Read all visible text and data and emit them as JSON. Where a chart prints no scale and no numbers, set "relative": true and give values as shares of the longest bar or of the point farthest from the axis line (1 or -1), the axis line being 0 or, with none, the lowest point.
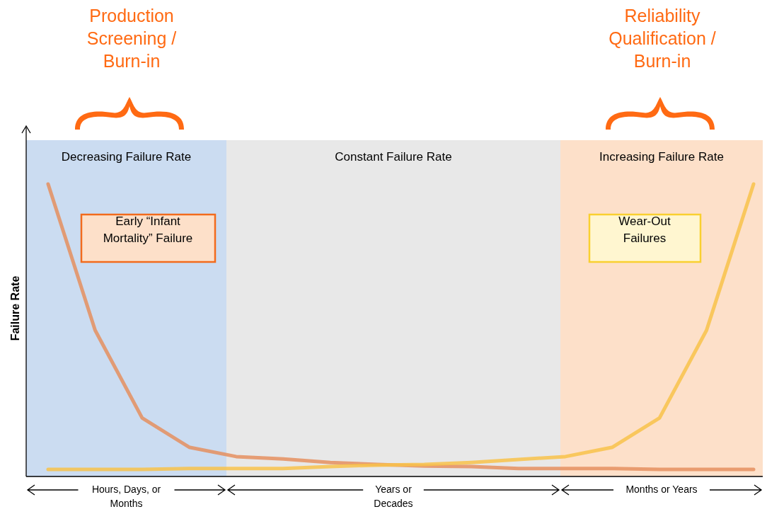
{
  "chart_data": {
    "type": "line",
    "relative": true,
    "ylabel": "Failure Rate",
    "categories": [
      null,
      null,
      null,
      null,
      null,
      null,
      null,
      null,
      null,
      null,
      null,
      null,
      null,
      null,
      null,
      null
    ],
    "series": [
      {
        "color": "#e58f5f",
        "values": [
          1,
          0.5,
          0.2,
          0.1,
          0.068,
          0.06,
          0.048,
          0.041,
          0.036,
          0.034,
          0.027,
          0.027,
          0.027,
          0.024,
          0.024,
          0.024
        ]
      },
      {
        "color": "#f8c24a",
        "values": [
          0.024,
          0.024,
          0.024,
          0.027,
          0.027,
          0.027,
          0.034,
          0.039,
          0.041,
          0.048,
          0.058,
          0.068,
          0.1,
          0.2,
          0.5,
          1
        ]
      }
    ],
    "annotations": [
      "Decreasing Failure Rate",
      "Constant Failure Rate",
      "Increasing Failure Rate",
      "Production Screening / Burn-in",
      "Reliability Qualification / Burn-in",
      "Early “Infant Mortality” Failure",
      "Wear-Out Failures",
      "Hours, Days, or Months",
      "Years or Decades",
      "Months or Years"
    ]
  }
}
